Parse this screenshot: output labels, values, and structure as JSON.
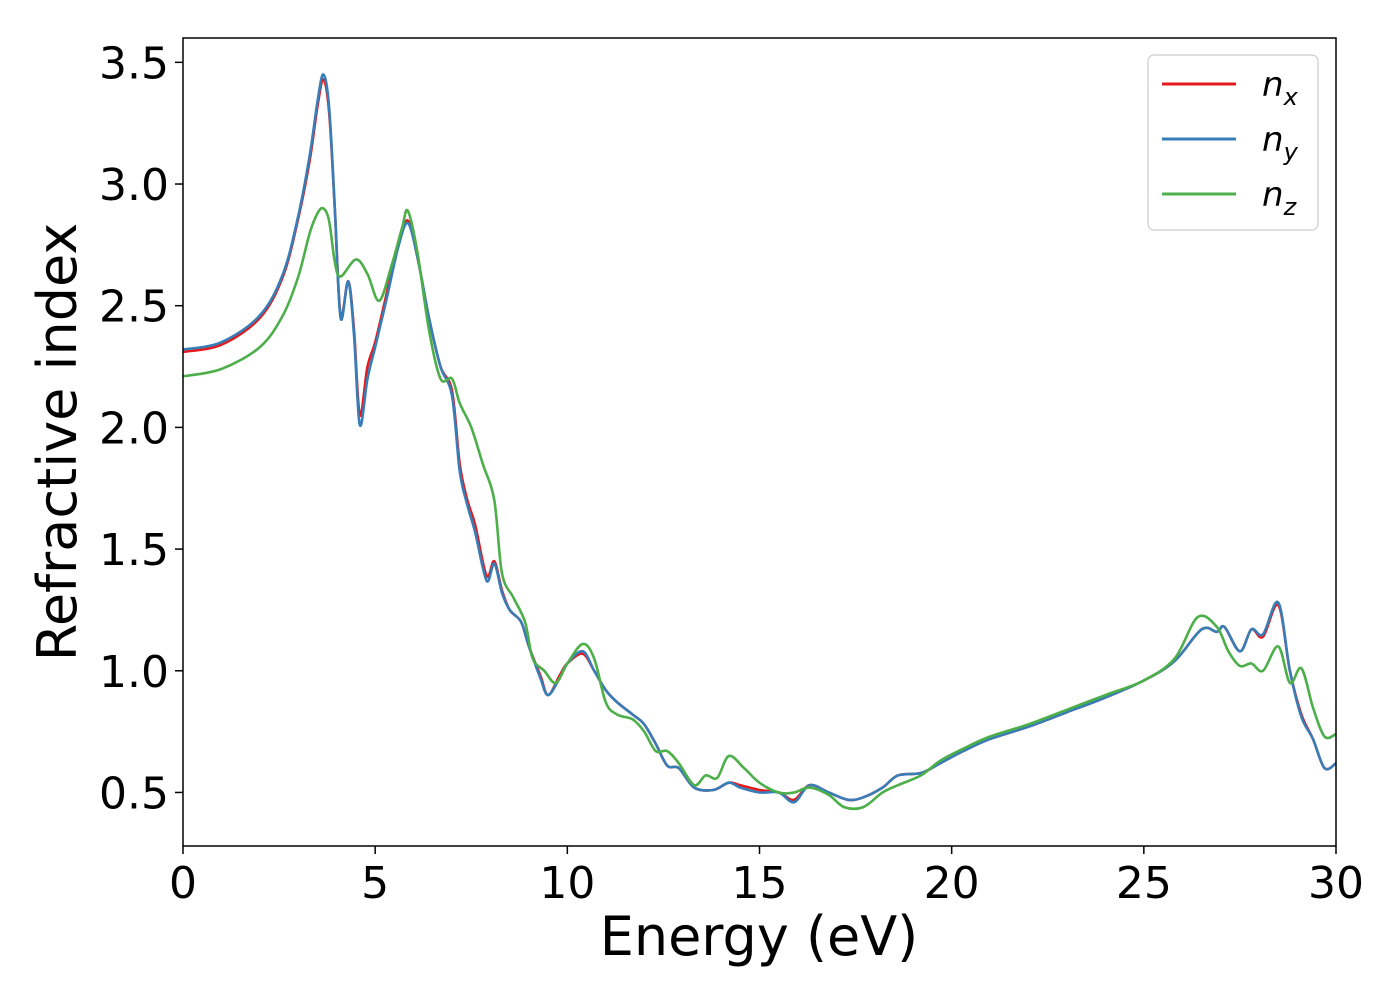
{
  "chart_data": {
    "type": "line",
    "title": "",
    "xlabel": "Energy (eV)",
    "ylabel": "Refractive index",
    "xlim": [
      0,
      30
    ],
    "ylim": [
      0.28,
      3.6
    ],
    "xticks": [
      0,
      5,
      10,
      15,
      20,
      25,
      30
    ],
    "xtick_labels": [
      "0",
      "5",
      "10",
      "15",
      "20",
      "25",
      "30"
    ],
    "yticks": [
      0.5,
      1.0,
      1.5,
      2.0,
      2.5,
      3.0,
      3.5
    ],
    "ytick_labels": [
      "0.5",
      "1.0",
      "1.5",
      "2.0",
      "2.5",
      "3.0",
      "3.5"
    ],
    "grid": false,
    "legend_position": "top-right",
    "series": [
      {
        "name": "n",
        "subscript": "x",
        "color": "#e41a1c",
        "points": [
          [
            0,
            2.31
          ],
          [
            1,
            2.34
          ],
          [
            2,
            2.45
          ],
          [
            2.6,
            2.62
          ],
          [
            3.0,
            2.86
          ],
          [
            3.3,
            3.1
          ],
          [
            3.5,
            3.32
          ],
          [
            3.65,
            3.43
          ],
          [
            3.8,
            3.3
          ],
          [
            3.95,
            2.9
          ],
          [
            4.1,
            2.46
          ],
          [
            4.3,
            2.6
          ],
          [
            4.45,
            2.4
          ],
          [
            4.6,
            2.05
          ],
          [
            4.8,
            2.25
          ],
          [
            5.0,
            2.35
          ],
          [
            5.3,
            2.55
          ],
          [
            5.6,
            2.75
          ],
          [
            5.85,
            2.85
          ],
          [
            6.1,
            2.7
          ],
          [
            6.4,
            2.45
          ],
          [
            6.7,
            2.25
          ],
          [
            7.0,
            2.15
          ],
          [
            7.2,
            1.85
          ],
          [
            7.4,
            1.7
          ],
          [
            7.6,
            1.6
          ],
          [
            7.9,
            1.39
          ],
          [
            8.1,
            1.45
          ],
          [
            8.3,
            1.33
          ],
          [
            8.5,
            1.25
          ],
          [
            8.8,
            1.2
          ],
          [
            9.0,
            1.1
          ],
          [
            9.3,
            0.98
          ],
          [
            9.5,
            0.9
          ],
          [
            9.8,
            0.98
          ],
          [
            10.0,
            1.03
          ],
          [
            10.4,
            1.07
          ],
          [
            10.7,
            1.0
          ],
          [
            11.0,
            0.92
          ],
          [
            11.3,
            0.87
          ],
          [
            11.7,
            0.82
          ],
          [
            12.0,
            0.78
          ],
          [
            12.3,
            0.7
          ],
          [
            12.6,
            0.61
          ],
          [
            12.9,
            0.6
          ],
          [
            13.3,
            0.52
          ],
          [
            13.8,
            0.51
          ],
          [
            14.2,
            0.54
          ],
          [
            14.5,
            0.53
          ],
          [
            15.0,
            0.51
          ],
          [
            15.5,
            0.5
          ],
          [
            15.9,
            0.47
          ],
          [
            16.3,
            0.53
          ],
          [
            16.8,
            0.5
          ],
          [
            17.3,
            0.47
          ],
          [
            17.7,
            0.48
          ],
          [
            18.2,
            0.52
          ],
          [
            18.6,
            0.57
          ],
          [
            19.2,
            0.58
          ],
          [
            19.7,
            0.62
          ],
          [
            20.3,
            0.67
          ],
          [
            21.0,
            0.72
          ],
          [
            22.0,
            0.77
          ],
          [
            23.0,
            0.83
          ],
          [
            24.0,
            0.89
          ],
          [
            25.0,
            0.96
          ],
          [
            25.8,
            1.04
          ],
          [
            26.5,
            1.17
          ],
          [
            26.9,
            1.16
          ],
          [
            27.1,
            1.18
          ],
          [
            27.5,
            1.08
          ],
          [
            27.8,
            1.17
          ],
          [
            28.1,
            1.14
          ],
          [
            28.5,
            1.27
          ],
          [
            28.8,
            1.0
          ],
          [
            29.1,
            0.82
          ],
          [
            29.4,
            0.72
          ],
          [
            29.7,
            0.6
          ],
          [
            30,
            0.62
          ]
        ]
      },
      {
        "name": "n",
        "subscript": "y",
        "color": "#377eb8",
        "points": [
          [
            0,
            2.32
          ],
          [
            1,
            2.35
          ],
          [
            2,
            2.46
          ],
          [
            2.6,
            2.63
          ],
          [
            3.0,
            2.87
          ],
          [
            3.3,
            3.12
          ],
          [
            3.5,
            3.34
          ],
          [
            3.65,
            3.45
          ],
          [
            3.8,
            3.32
          ],
          [
            3.95,
            2.9
          ],
          [
            4.1,
            2.45
          ],
          [
            4.3,
            2.6
          ],
          [
            4.45,
            2.38
          ],
          [
            4.6,
            2.01
          ],
          [
            4.8,
            2.2
          ],
          [
            5.0,
            2.33
          ],
          [
            5.3,
            2.53
          ],
          [
            5.6,
            2.74
          ],
          [
            5.85,
            2.84
          ],
          [
            6.1,
            2.7
          ],
          [
            6.4,
            2.45
          ],
          [
            6.7,
            2.25
          ],
          [
            7.0,
            2.13
          ],
          [
            7.2,
            1.82
          ],
          [
            7.4,
            1.68
          ],
          [
            7.6,
            1.57
          ],
          [
            7.9,
            1.37
          ],
          [
            8.1,
            1.44
          ],
          [
            8.3,
            1.32
          ],
          [
            8.5,
            1.25
          ],
          [
            8.8,
            1.2
          ],
          [
            9.0,
            1.1
          ],
          [
            9.3,
            0.97
          ],
          [
            9.5,
            0.9
          ],
          [
            9.8,
            0.97
          ],
          [
            10.0,
            1.03
          ],
          [
            10.4,
            1.08
          ],
          [
            10.7,
            1.0
          ],
          [
            11.0,
            0.92
          ],
          [
            11.3,
            0.87
          ],
          [
            11.7,
            0.82
          ],
          [
            12.0,
            0.78
          ],
          [
            12.3,
            0.7
          ],
          [
            12.6,
            0.61
          ],
          [
            12.9,
            0.6
          ],
          [
            13.3,
            0.52
          ],
          [
            13.8,
            0.51
          ],
          [
            14.2,
            0.54
          ],
          [
            14.5,
            0.52
          ],
          [
            15.0,
            0.5
          ],
          [
            15.5,
            0.5
          ],
          [
            15.9,
            0.46
          ],
          [
            16.3,
            0.53
          ],
          [
            16.8,
            0.5
          ],
          [
            17.3,
            0.47
          ],
          [
            17.7,
            0.48
          ],
          [
            18.2,
            0.52
          ],
          [
            18.6,
            0.57
          ],
          [
            19.2,
            0.58
          ],
          [
            19.7,
            0.62
          ],
          [
            20.3,
            0.67
          ],
          [
            21.0,
            0.72
          ],
          [
            22.0,
            0.77
          ],
          [
            23.0,
            0.83
          ],
          [
            24.0,
            0.89
          ],
          [
            25.0,
            0.96
          ],
          [
            25.8,
            1.04
          ],
          [
            26.5,
            1.17
          ],
          [
            26.9,
            1.16
          ],
          [
            27.1,
            1.18
          ],
          [
            27.5,
            1.08
          ],
          [
            27.8,
            1.17
          ],
          [
            28.1,
            1.15
          ],
          [
            28.5,
            1.28
          ],
          [
            28.8,
            1.0
          ],
          [
            29.1,
            0.81
          ],
          [
            29.4,
            0.72
          ],
          [
            29.7,
            0.6
          ],
          [
            30,
            0.62
          ]
        ]
      },
      {
        "name": "n",
        "subscript": "z",
        "color": "#4daf4a",
        "points": [
          [
            0,
            2.21
          ],
          [
            1,
            2.24
          ],
          [
            2,
            2.33
          ],
          [
            2.6,
            2.46
          ],
          [
            3.0,
            2.62
          ],
          [
            3.3,
            2.8
          ],
          [
            3.5,
            2.88
          ],
          [
            3.65,
            2.9
          ],
          [
            3.8,
            2.85
          ],
          [
            3.95,
            2.68
          ],
          [
            4.1,
            2.62
          ],
          [
            4.5,
            2.69
          ],
          [
            4.8,
            2.63
          ],
          [
            5.1,
            2.52
          ],
          [
            5.4,
            2.65
          ],
          [
            5.7,
            2.82
          ],
          [
            5.85,
            2.89
          ],
          [
            6.1,
            2.72
          ],
          [
            6.4,
            2.4
          ],
          [
            6.7,
            2.2
          ],
          [
            7.0,
            2.2
          ],
          [
            7.2,
            2.1
          ],
          [
            7.5,
            2.0
          ],
          [
            7.8,
            1.85
          ],
          [
            8.1,
            1.7
          ],
          [
            8.3,
            1.4
          ],
          [
            8.6,
            1.3
          ],
          [
            8.9,
            1.2
          ],
          [
            9.1,
            1.05
          ],
          [
            9.4,
            1.0
          ],
          [
            9.7,
            0.95
          ],
          [
            10.0,
            1.03
          ],
          [
            10.4,
            1.11
          ],
          [
            10.7,
            1.05
          ],
          [
            11.0,
            0.87
          ],
          [
            11.3,
            0.82
          ],
          [
            11.7,
            0.8
          ],
          [
            12.0,
            0.75
          ],
          [
            12.3,
            0.67
          ],
          [
            12.6,
            0.67
          ],
          [
            12.9,
            0.62
          ],
          [
            13.3,
            0.53
          ],
          [
            13.6,
            0.57
          ],
          [
            13.9,
            0.56
          ],
          [
            14.2,
            0.65
          ],
          [
            14.6,
            0.6
          ],
          [
            15.0,
            0.54
          ],
          [
            15.5,
            0.5
          ],
          [
            15.9,
            0.5
          ],
          [
            16.3,
            0.52
          ],
          [
            16.8,
            0.49
          ],
          [
            17.2,
            0.44
          ],
          [
            17.7,
            0.44
          ],
          [
            18.2,
            0.5
          ],
          [
            18.6,
            0.53
          ],
          [
            19.2,
            0.57
          ],
          [
            19.7,
            0.63
          ],
          [
            20.3,
            0.68
          ],
          [
            21.0,
            0.73
          ],
          [
            22.0,
            0.78
          ],
          [
            23.0,
            0.84
          ],
          [
            24.0,
            0.9
          ],
          [
            25.0,
            0.96
          ],
          [
            25.8,
            1.05
          ],
          [
            26.4,
            1.22
          ],
          [
            26.9,
            1.18
          ],
          [
            27.2,
            1.08
          ],
          [
            27.5,
            1.02
          ],
          [
            27.8,
            1.03
          ],
          [
            28.1,
            1.0
          ],
          [
            28.5,
            1.1
          ],
          [
            28.8,
            0.95
          ],
          [
            29.1,
            1.01
          ],
          [
            29.4,
            0.85
          ],
          [
            29.7,
            0.73
          ],
          [
            30,
            0.74
          ]
        ]
      }
    ]
  }
}
